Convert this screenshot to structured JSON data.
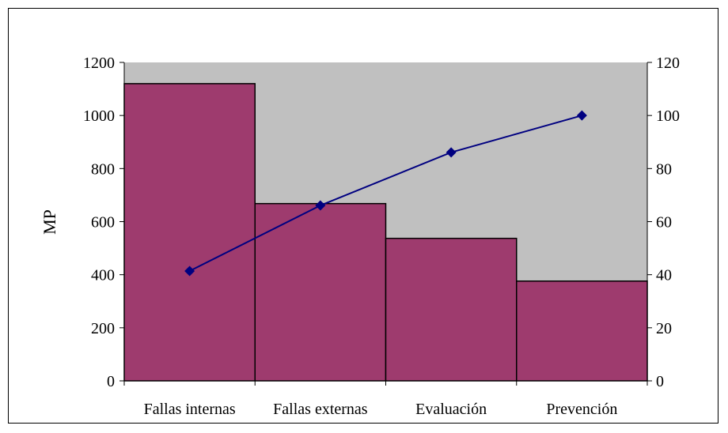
{
  "chart_data": {
    "type": "bar",
    "title": "",
    "xlabel": "",
    "ylabel": "MP",
    "ylim": [
      0,
      1200
    ],
    "y2lim": [
      0,
      120
    ],
    "yticks": [
      "0",
      "200",
      "400",
      "600",
      "800",
      "1000",
      "1200"
    ],
    "y2ticks": [
      "0",
      "20",
      "40",
      "60",
      "80",
      "100",
      "120"
    ],
    "categories": [
      "Fallas internas",
      "Fallas externas",
      "Evaluación",
      "Prevención"
    ],
    "series": [
      {
        "type": "bar",
        "axis": "left",
        "values": [
          1120,
          668,
          537,
          376
        ]
      },
      {
        "type": "line",
        "axis": "right",
        "values": [
          41.4,
          66.1,
          86.1,
          100
        ]
      }
    ],
    "grid": false,
    "legend": "none",
    "colors": {
      "bar": "#9e3b6e",
      "line": "#000080",
      "plot_background": "#c0c0c0"
    }
  }
}
